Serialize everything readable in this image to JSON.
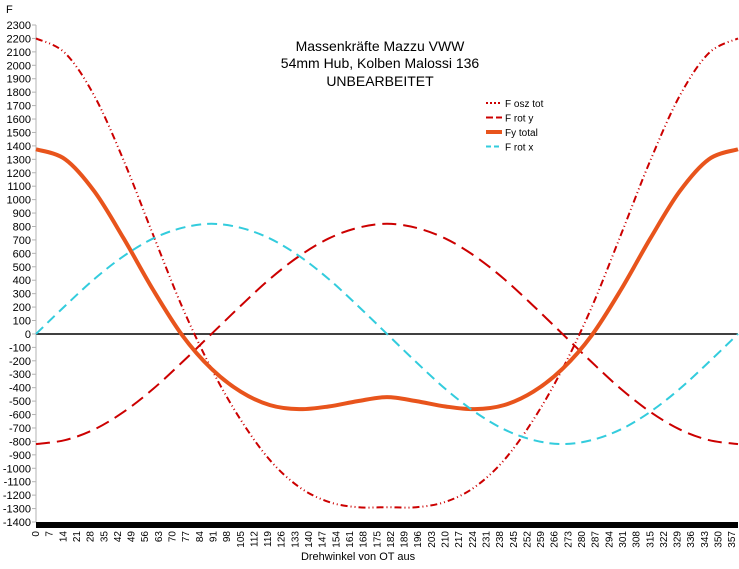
{
  "chart_data": {
    "type": "line",
    "title_lines": [
      "Massenkräfte Mazzu VWW",
      "54mm Hub, Kolben Malossi 136",
      "UNBEARBEITET"
    ],
    "ylabel": "F",
    "xlabel": "Drehwinkel von OT aus",
    "ylim": [
      -1400,
      2300
    ],
    "ytick_step": 100,
    "xlim": [
      0,
      360
    ],
    "x_ticks": [
      0,
      7,
      14,
      21,
      28,
      35,
      42,
      49,
      56,
      63,
      70,
      77,
      84,
      91,
      98,
      105,
      112,
      119,
      126,
      133,
      140,
      147,
      154,
      161,
      168,
      175,
      182,
      189,
      196,
      203,
      210,
      217,
      224,
      231,
      238,
      245,
      252,
      259,
      266,
      273,
      280,
      287,
      294,
      301,
      308,
      315,
      322,
      329,
      336,
      343,
      350,
      357
    ],
    "x_tick_labels": [
      "0",
      "7",
      "14",
      "21",
      "28",
      "35",
      "42",
      "49",
      "56",
      "63",
      "70",
      "77",
      "84",
      "91",
      "98",
      "105",
      "112",
      "119",
      "126",
      "133",
      "140",
      "147",
      "154",
      "161",
      "168",
      "175",
      "182",
      "189",
      "196",
      "203",
      "210",
      "217",
      "224",
      "231",
      "238",
      "245",
      "252",
      "259",
      "266",
      "273",
      "280",
      "287",
      "294",
      "301",
      "308",
      "315",
      "322",
      "329",
      "336",
      "343",
      "350",
      "357"
    ],
    "legend_position": "top-right",
    "grid": false,
    "x": [
      0,
      15,
      30,
      45,
      60,
      75,
      90,
      105,
      120,
      135,
      150,
      165,
      180,
      195,
      210,
      225,
      240,
      255,
      270,
      285,
      300,
      315,
      330,
      345,
      360
    ],
    "series": [
      {
        "name": "F osz tot",
        "color": "#cc0000",
        "style": "dash-dot-dot",
        "values": [
          2200,
          2090,
          1770,
          1290,
          740,
          200,
          -260,
          -640,
          -940,
          -1140,
          -1250,
          -1290,
          -1290,
          -1290,
          -1250,
          -1140,
          -940,
          -640,
          -260,
          200,
          740,
          1290,
          1770,
          2090,
          2200
        ]
      },
      {
        "name": "F rot y",
        "color": "#cc0000",
        "style": "long-dash",
        "values": [
          -820,
          -790,
          -710,
          -580,
          -410,
          -210,
          0,
          210,
          410,
          580,
          710,
          790,
          820,
          790,
          710,
          580,
          410,
          210,
          0,
          -210,
          -410,
          -580,
          -710,
          -790,
          -820
        ]
      },
      {
        "name": "Fy total",
        "color": "#e8541c",
        "style": "solid-thick",
        "values": [
          1375,
          1300,
          1060,
          710,
          330,
          -10,
          -260,
          -430,
          -530,
          -560,
          -540,
          -500,
          -470,
          -500,
          -540,
          -560,
          -530,
          -430,
          -260,
          -10,
          330,
          710,
          1060,
          1300,
          1375
        ]
      },
      {
        "name": "F rot x",
        "color": "#33ccdd",
        "style": "dash",
        "values": [
          0,
          210,
          410,
          580,
          710,
          790,
          820,
          790,
          710,
          580,
          410,
          210,
          0,
          -210,
          -410,
          -580,
          -710,
          -790,
          -820,
          -790,
          -710,
          -580,
          -410,
          -210,
          0
        ]
      }
    ]
  }
}
